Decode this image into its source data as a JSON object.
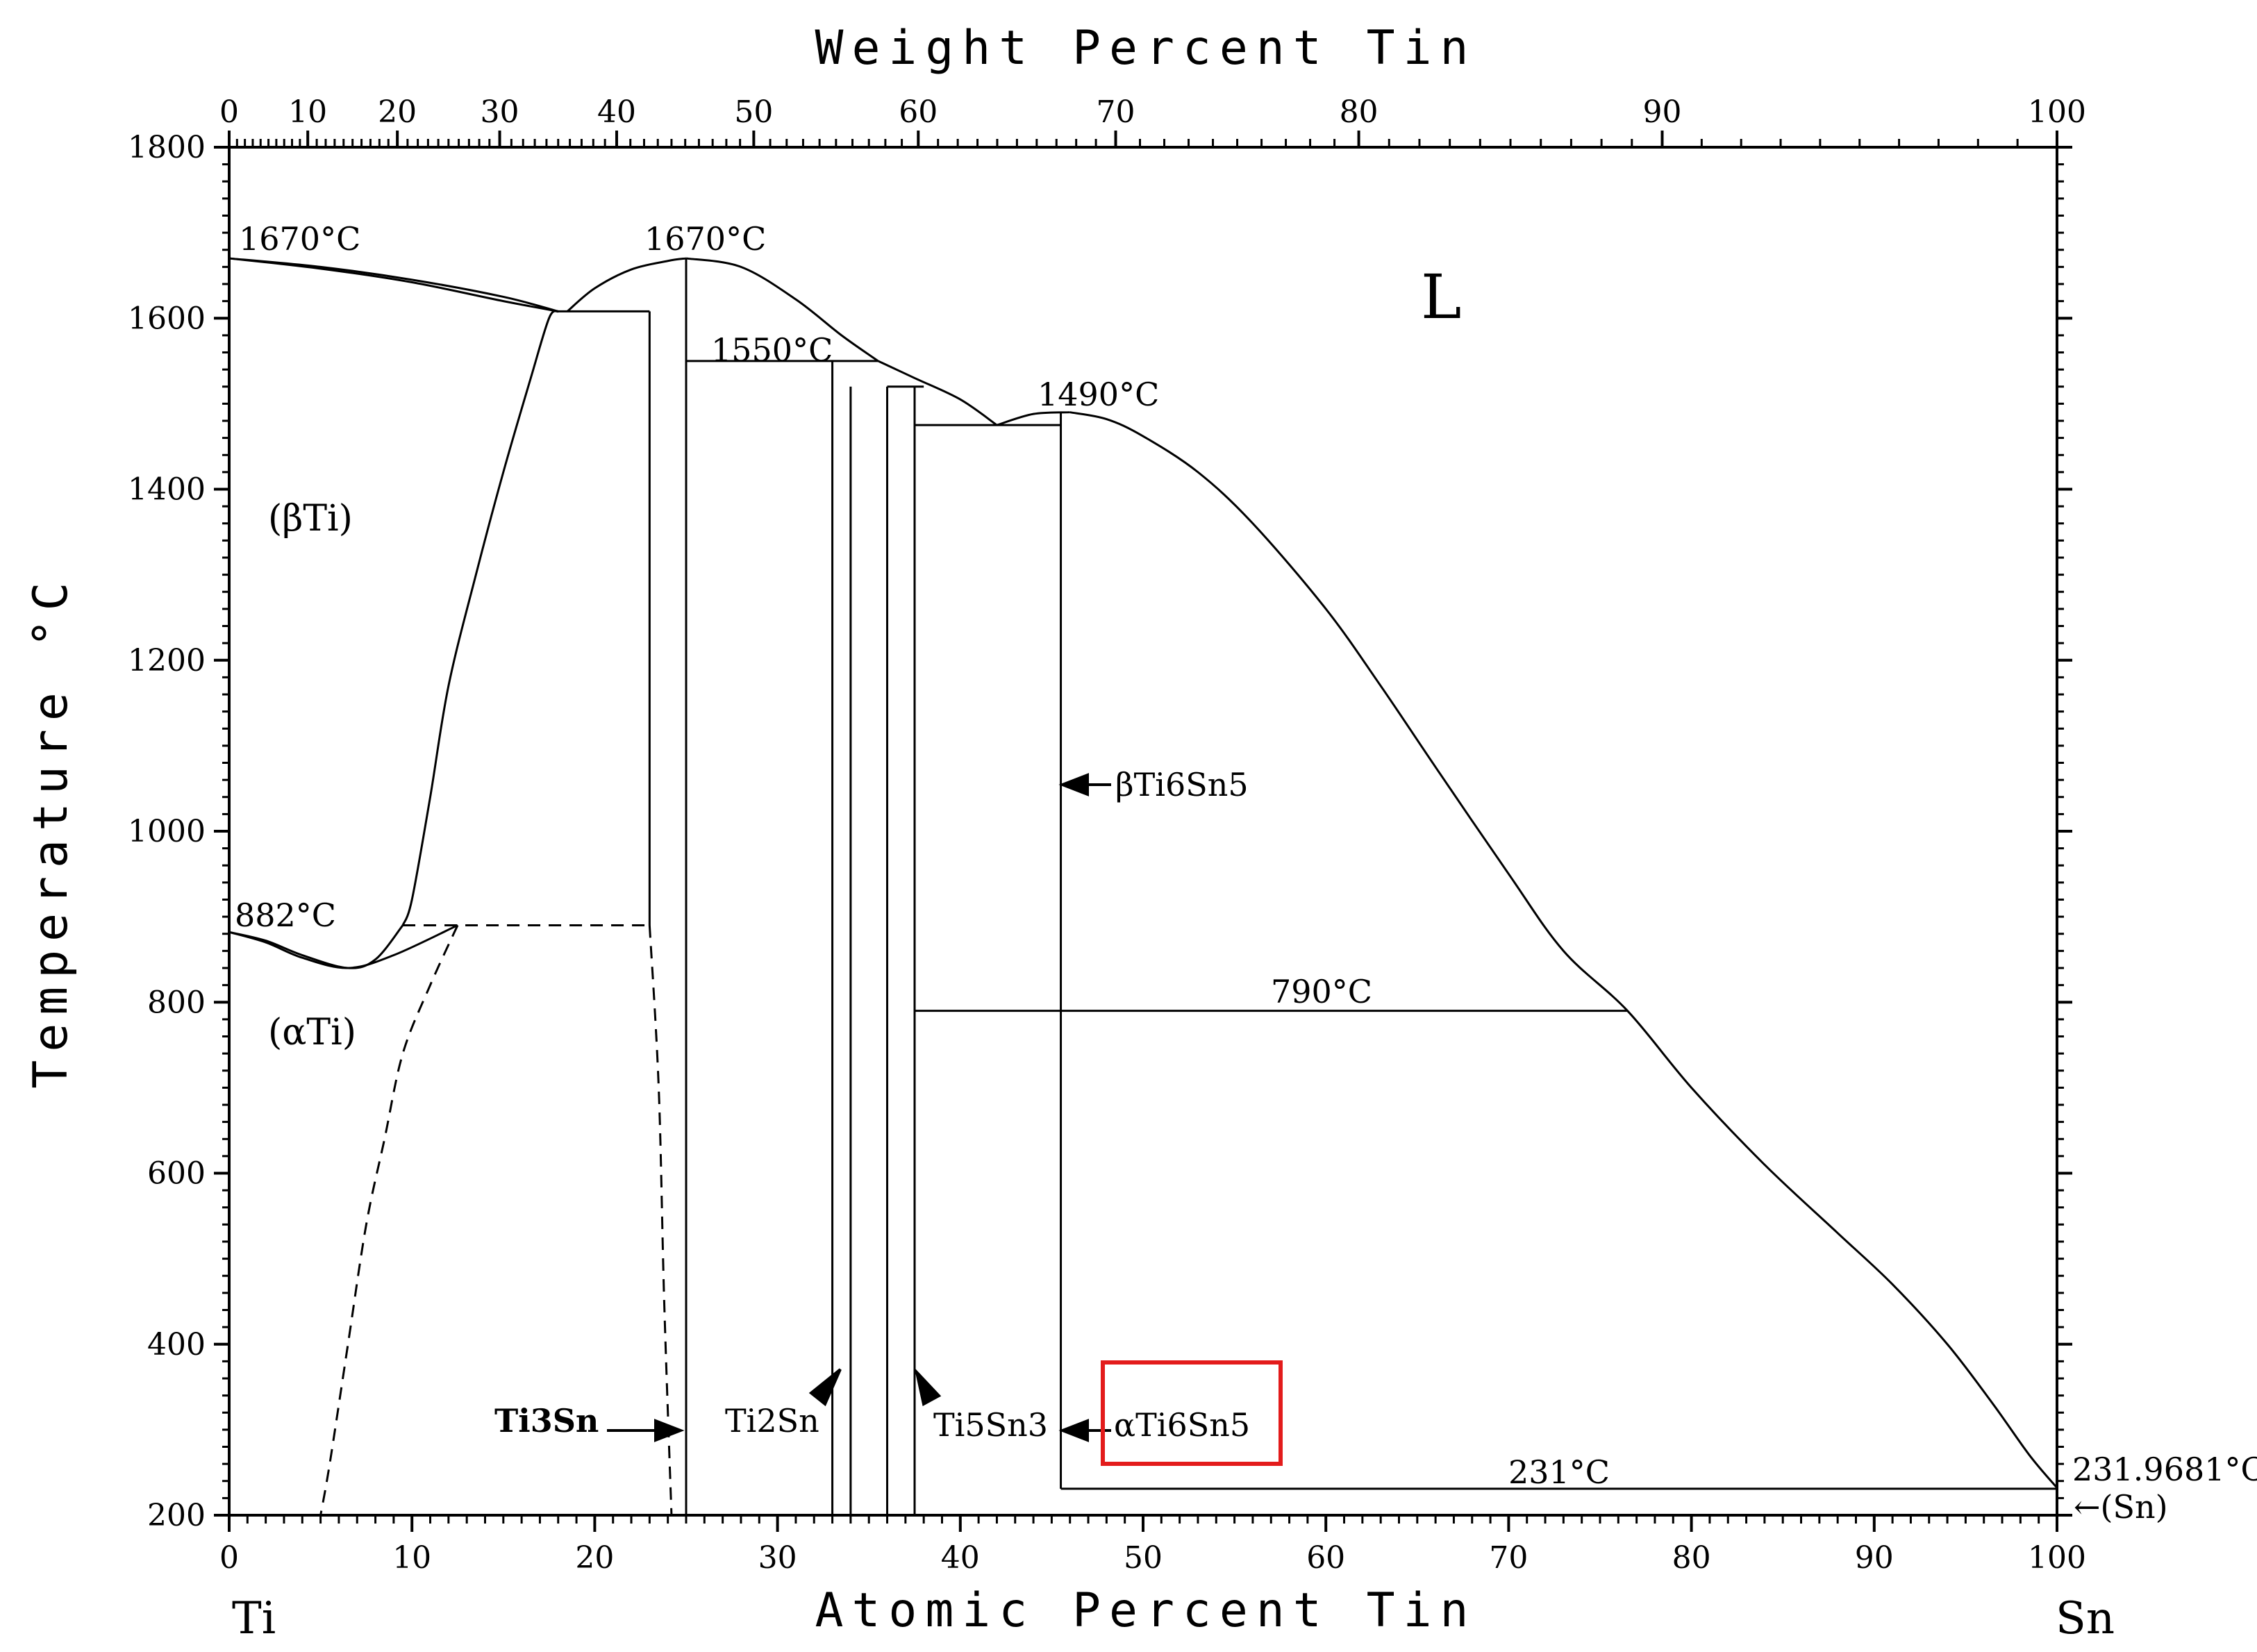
{
  "chart_data": {
    "type": "line",
    "title": "Weight Percent Tin",
    "xlabel": "Atomic Percent Tin",
    "ylabel": "Temperature °C",
    "xlim": [
      0,
      100
    ],
    "ylim": [
      200,
      1800
    ],
    "x_ticks": [
      "0",
      "10",
      "20",
      "30",
      "40",
      "50",
      "60",
      "70",
      "80",
      "90",
      "100"
    ],
    "y_ticks": [
      "200",
      "400",
      "600",
      "800",
      "1000",
      "1200",
      "1400",
      "1600",
      "1800"
    ],
    "top_axis": {
      "label": "Weight Percent Tin",
      "ticks": [
        {
          "label": "0",
          "at_pct": 0
        },
        {
          "label": "10",
          "at_pct": 4.3
        },
        {
          "label": "20",
          "at_pct": 9.2
        },
        {
          "label": "30",
          "at_pct": 14.8
        },
        {
          "label": "40",
          "at_pct": 21.2
        },
        {
          "label": "50",
          "at_pct": 28.7
        },
        {
          "label": "60",
          "at_pct": 37.7
        },
        {
          "label": "70",
          "at_pct": 48.5
        },
        {
          "label": "80",
          "at_pct": 61.8
        },
        {
          "label": "90",
          "at_pct": 78.4
        },
        {
          "label": "100",
          "at_pct": 100
        }
      ]
    },
    "left_element": "Ti",
    "right_element": "Sn",
    "series": [
      {
        "name": "liquidus-beta-ti",
        "points": [
          [
            0,
            1670
          ],
          [
            5,
            1660
          ],
          [
            10,
            1645
          ],
          [
            15,
            1625
          ],
          [
            18,
            1608
          ]
        ]
      },
      {
        "name": "solidus-beta-ti",
        "points": [
          [
            0,
            1670
          ],
          [
            5,
            1658
          ],
          [
            10,
            1642
          ],
          [
            15,
            1620
          ],
          [
            18,
            1608
          ]
        ]
      },
      {
        "name": "liquidus-ti3sn",
        "points": [
          [
            18.5,
            1608
          ],
          [
            20,
            1635
          ],
          [
            22,
            1657
          ],
          [
            24,
            1667
          ],
          [
            25,
            1670
          ]
        ]
      },
      {
        "name": "liquidus-ti2sn",
        "points": [
          [
            25,
            1670
          ],
          [
            28,
            1660
          ],
          [
            31,
            1622
          ],
          [
            33.5,
            1580
          ],
          [
            35.5,
            1550
          ]
        ]
      },
      {
        "name": "liquidus-ti5sn3",
        "points": [
          [
            35.5,
            1550
          ],
          [
            37.5,
            1530
          ],
          [
            40,
            1505
          ],
          [
            42,
            1475
          ]
        ]
      },
      {
        "name": "liquidus-ti6sn5",
        "points": [
          [
            42,
            1475
          ],
          [
            44,
            1488
          ],
          [
            46,
            1490
          ]
        ]
      },
      {
        "name": "liquidus-sn-rich",
        "points": [
          [
            46,
            1490
          ],
          [
            48,
            1482
          ],
          [
            50,
            1462
          ],
          [
            53,
            1420
          ],
          [
            56,
            1360
          ],
          [
            60,
            1260
          ],
          [
            63,
            1170
          ],
          [
            66,
            1075
          ],
          [
            70,
            950
          ],
          [
            73,
            860
          ],
          [
            76.5,
            790
          ],
          [
            80,
            700
          ],
          [
            84,
            610
          ],
          [
            88,
            530
          ],
          [
            91,
            470
          ],
          [
            94,
            400
          ],
          [
            96.5,
            330
          ],
          [
            98.5,
            270
          ],
          [
            100,
            232
          ]
        ]
      },
      {
        "name": "beta-transus",
        "points": [
          [
            9.5,
            890
          ],
          [
            10,
            920
          ],
          [
            11,
            1040
          ],
          [
            12,
            1170
          ],
          [
            13.5,
            1300
          ],
          [
            15,
            1420
          ],
          [
            16.5,
            1530
          ],
          [
            17.5,
            1600
          ],
          [
            18,
            1608
          ]
        ]
      },
      {
        "name": "alpha-beta-boundary",
        "points": [
          [
            0,
            882
          ],
          [
            2,
            872
          ],
          [
            4,
            855
          ],
          [
            6.5,
            840
          ],
          [
            8,
            850
          ],
          [
            9.5,
            890
          ]
        ]
      },
      {
        "name": "alpha-boundary-upper",
        "points": [
          [
            0,
            882
          ],
          [
            2,
            870
          ],
          [
            4,
            852
          ],
          [
            6.5,
            840
          ],
          [
            9,
            855
          ],
          [
            12.5,
            890
          ]
        ]
      },
      {
        "name": "alpha-solvus-dashed",
        "points": [
          [
            12.5,
            890
          ],
          [
            11,
            820
          ],
          [
            9.5,
            740
          ],
          [
            8.5,
            640
          ],
          [
            7.5,
            540
          ],
          [
            6.5,
            400
          ],
          [
            5.5,
            260
          ],
          [
            5,
            200
          ]
        ]
      },
      {
        "name": "ti3sn-right-dashed",
        "points": [
          [
            23,
            890
          ],
          [
            23.5,
            700
          ],
          [
            23.8,
            450
          ],
          [
            24.2,
            200
          ]
        ]
      }
    ],
    "vertical_lines": [
      {
        "name": "ti3sn-left",
        "x": 23,
        "y_from": 890,
        "y_to": 1608
      },
      {
        "name": "ti3sn-congruent",
        "x": 25,
        "y_from": 200,
        "y_to": 1670
      },
      {
        "name": "ti2sn-left",
        "x": 33,
        "y_from": 200,
        "y_to": 1550
      },
      {
        "name": "ti2sn-right",
        "x": 34,
        "y_from": 200,
        "y_to": 1520
      },
      {
        "name": "ti5sn3-left",
        "x": 36,
        "y_from": 200,
        "y_to": 1520
      },
      {
        "name": "ti5sn3-right",
        "x": 37.5,
        "y_from": 200,
        "y_to": 1520
      },
      {
        "name": "ti6sn5",
        "x": 45.5,
        "y_from": 231,
        "y_to": 1490
      }
    ],
    "isotherms": [
      {
        "name": "iso-1608",
        "x_from": 18,
        "x_to": 23,
        "y": 1608
      },
      {
        "name": "iso-1550",
        "x_from": 25,
        "x_to": 35.5,
        "y": 1550
      },
      {
        "name": "iso-1520",
        "x_from": 36,
        "x_to": 38,
        "y": 1520
      },
      {
        "name": "iso-1475",
        "x_from": 37.5,
        "x_to": 45.5,
        "y": 1475
      },
      {
        "name": "iso-890",
        "x_from": 9.5,
        "x_to": 23,
        "y": 890,
        "dashed": true
      },
      {
        "name": "iso-790",
        "x_from": 37.5,
        "x_to": 76.5,
        "y": 790
      },
      {
        "name": "iso-231",
        "x_from": 45.5,
        "x_to": 100,
        "y": 231
      }
    ],
    "annotations": {
      "t1670_left": "1670°C",
      "t1670_peak": "1670°C",
      "t1550": "1550°C",
      "t1490": "1490°C",
      "t882": "882°C",
      "t790": "790°C",
      "t231": "231°C",
      "t231_9681": "231.9681°C",
      "sn_phase": "←(Sn)",
      "liquid": "L",
      "beta_ti": "(βTi)",
      "alpha_ti": "(αTi)",
      "ti3sn": "Ti3Sn",
      "ti2sn": "Ti2Sn",
      "ti5sn3": "Ti5Sn3",
      "beta_ti6sn5": "βTi6Sn5",
      "alpha_ti6sn5": "αTi6Sn5"
    },
    "highlight": {
      "label": "αTi6Sn5",
      "color": "#e31b1b"
    },
    "colors": {
      "line": "#000000",
      "highlight": "#e31b1b"
    }
  }
}
